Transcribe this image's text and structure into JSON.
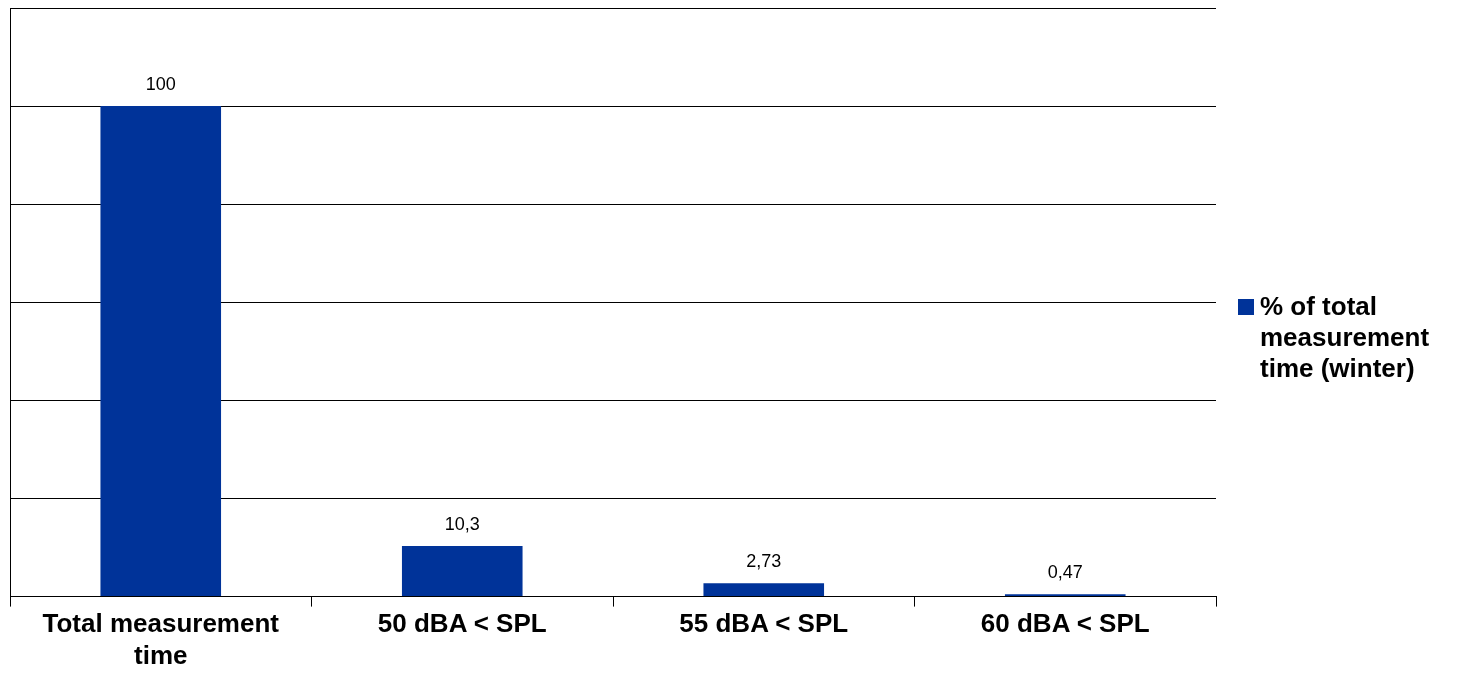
{
  "chart_data": {
    "type": "bar",
    "categories": [
      "Total measurement time",
      "50 dBA < SPL",
      "55 dBA < SPL",
      "60 dBA < SPL"
    ],
    "series": [
      {
        "name": "% of total measurement time (winter)",
        "color": "#003399",
        "values": [
          100,
          10.3,
          2.73,
          0.47
        ],
        "value_labels": [
          "100",
          "10,3",
          "2,73",
          "0,47"
        ]
      }
    ],
    "ylim": [
      0,
      120
    ],
    "yticks": [
      {
        "value": 0,
        "label": null
      },
      {
        "value": 20,
        "label": null
      },
      {
        "value": 40,
        "label": null
      },
      {
        "value": 60,
        "label": null
      },
      {
        "value": 80,
        "label": null
      },
      {
        "value": 100,
        "label": null
      },
      {
        "value": 120,
        "label": null
      }
    ],
    "grid": "y",
    "legend": "right",
    "tick_labels": "x"
  }
}
